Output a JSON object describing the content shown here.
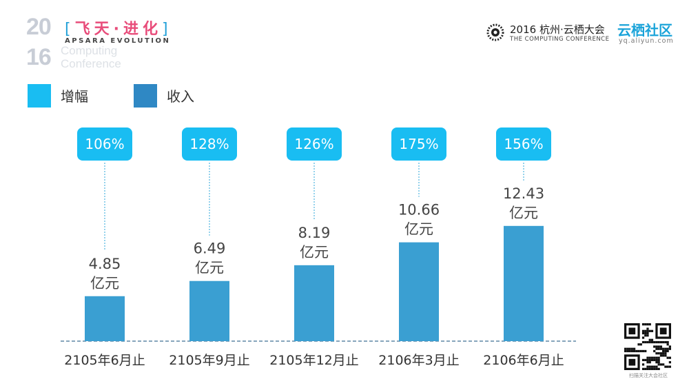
{
  "header": {
    "left_logo": {
      "year_top": "20",
      "year_bottom": "16",
      "slogan_open": "[",
      "slogan": "飞天·进化",
      "slogan_close": "]",
      "apsara": "APSARA EVOLUTION",
      "watermark_line1": "Computing",
      "watermark_line2": "Conference"
    },
    "right_logo": {
      "conference_title": "2016 杭州·云栖大会",
      "conference_subtitle": "THE COMPUTING CONFERENCE",
      "community_name": "云栖社区",
      "community_url": "yq.aliyun.com"
    }
  },
  "legend": [
    {
      "label": "增幅",
      "color": "#19bdf2"
    },
    {
      "label": "收入",
      "color": "#2f88c4"
    }
  ],
  "colors": {
    "bar": "#3a9fd2",
    "growth_box": "#19bdf2",
    "axis": "#3f6f95",
    "connector": "#2aa6d8"
  },
  "chart_data": {
    "type": "bar",
    "categories": [
      "2105年6月止",
      "2105年9月止",
      "2105年12月止",
      "2106年3月止",
      "2106年6月止"
    ],
    "series": [
      {
        "name": "收入",
        "values": [
          4.85,
          6.49,
          8.19,
          10.66,
          12.43
        ],
        "unit": "亿元"
      },
      {
        "name": "增幅",
        "values": [
          "106%",
          "128%",
          "126%",
          "175%",
          "156%"
        ]
      }
    ],
    "value_labels": [
      "4.85",
      "6.49",
      "8.19",
      "10.66",
      "12.43"
    ],
    "value_unit_label": "亿元",
    "growth_labels": [
      "106%",
      "128%",
      "126%",
      "175%",
      "156%"
    ],
    "ylim": [
      0,
      14
    ],
    "grid": false,
    "legend_position": "top-left"
  },
  "qr": {
    "caption": "扫描关注大会社区",
    "icon": "qr-code-icon"
  }
}
